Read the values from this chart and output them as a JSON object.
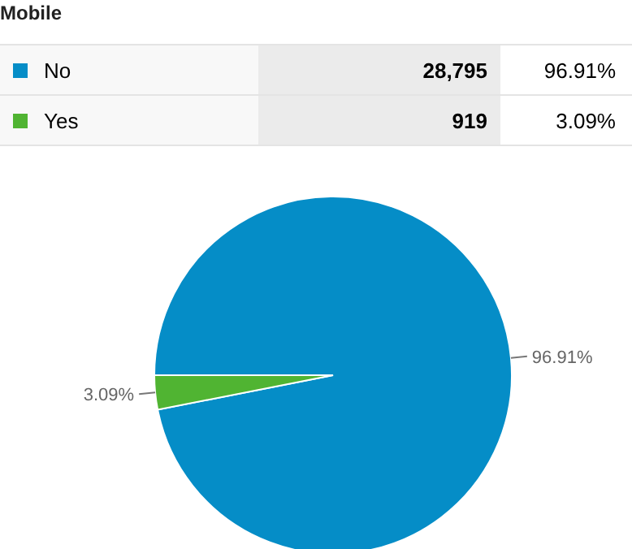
{
  "chart_data": {
    "type": "pie",
    "title": "Mobile",
    "categories": [
      "No",
      "Yes"
    ],
    "values": [
      96.91,
      3.09
    ],
    "value_labels": [
      "96.91%",
      "3.09%"
    ],
    "annotations": [
      "28,795",
      "919"
    ],
    "colors": [
      "#058dc7",
      "#50b432"
    ],
    "legend": "top"
  }
}
